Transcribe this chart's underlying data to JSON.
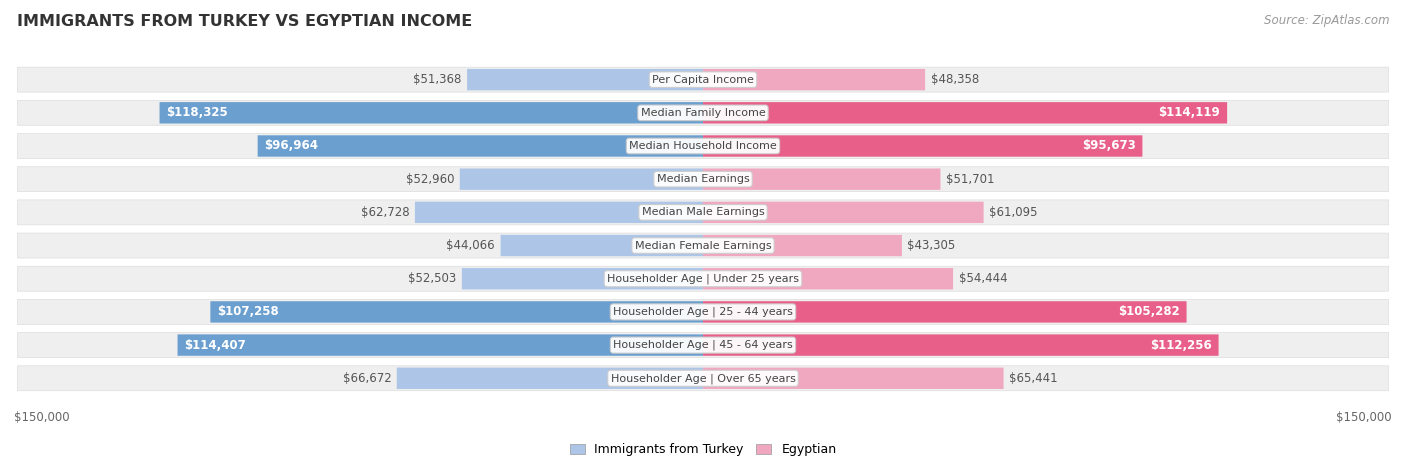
{
  "title": "IMMIGRANTS FROM TURKEY VS EGYPTIAN INCOME",
  "source": "Source: ZipAtlas.com",
  "categories": [
    "Per Capita Income",
    "Median Family Income",
    "Median Household Income",
    "Median Earnings",
    "Median Male Earnings",
    "Median Female Earnings",
    "Householder Age | Under 25 years",
    "Householder Age | 25 - 44 years",
    "Householder Age | 45 - 64 years",
    "Householder Age | Over 65 years"
  ],
  "turkey_values": [
    51368,
    118325,
    96964,
    52960,
    62728,
    44066,
    52503,
    107258,
    114407,
    66672
  ],
  "egypt_values": [
    48358,
    114119,
    95673,
    51701,
    61095,
    43305,
    54444,
    105282,
    112256,
    65441
  ],
  "turkey_labels": [
    "$51,368",
    "$118,325",
    "$96,964",
    "$52,960",
    "$62,728",
    "$44,066",
    "$52,503",
    "$107,258",
    "$114,407",
    "$66,672"
  ],
  "egypt_labels": [
    "$48,358",
    "$114,119",
    "$95,673",
    "$51,701",
    "$61,095",
    "$43,305",
    "$54,444",
    "$105,282",
    "$112,256",
    "$65,441"
  ],
  "turkey_color_light": "#adc6e8",
  "turkey_color_dark": "#6b9fcf",
  "egypt_color_light": "#f0a8c0",
  "egypt_color_dark": "#e8608a",
  "max_value": 150000,
  "background_color": "#ffffff",
  "row_bg_color": "#efefef",
  "inside_label_threshold": 80000,
  "label_fontsize": 8.5,
  "cat_fontsize": 8.0
}
